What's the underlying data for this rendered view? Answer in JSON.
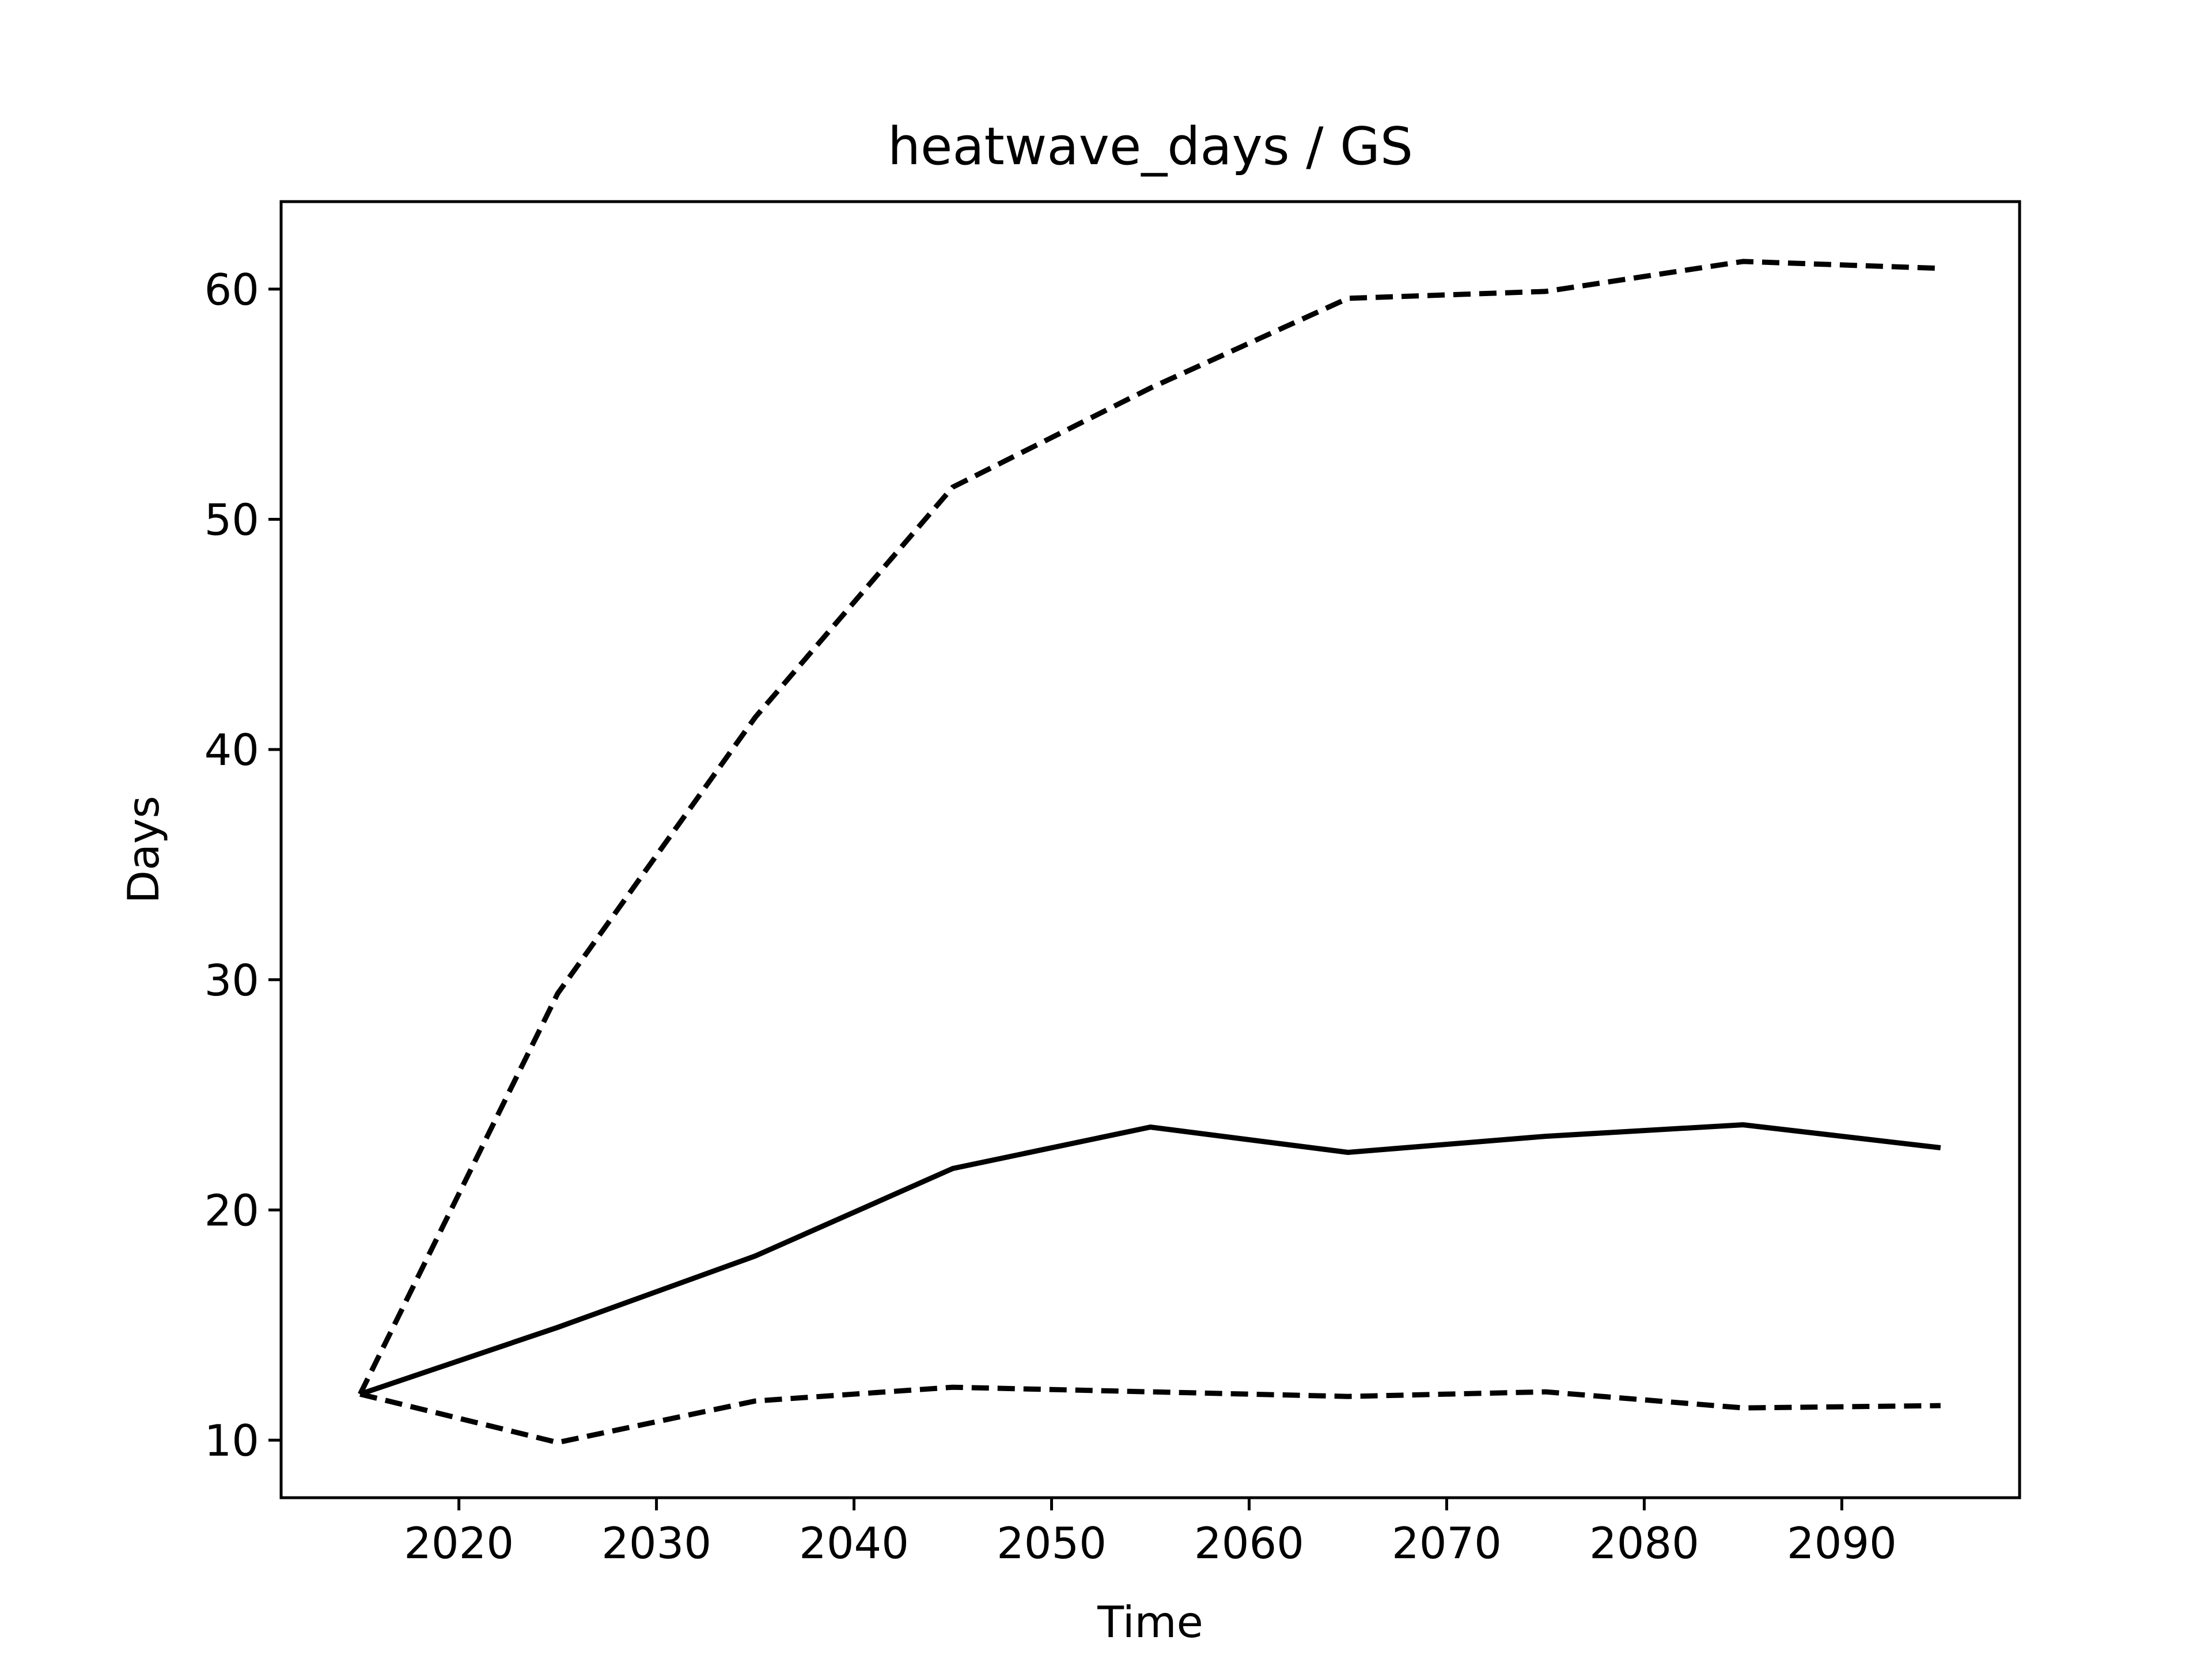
{
  "chart_data": {
    "type": "line",
    "title": "heatwave_days / GS",
    "xlabel": "Time",
    "ylabel": "Days",
    "x": [
      2015,
      2025,
      2035,
      2045,
      2055,
      2065,
      2075,
      2085,
      2095
    ],
    "xlim": [
      2011,
      2099
    ],
    "ylim": [
      7.5,
      63.8
    ],
    "xticks": [
      2020,
      2030,
      2040,
      2050,
      2060,
      2070,
      2080,
      2090
    ],
    "yticks": [
      10,
      20,
      30,
      40,
      50,
      60
    ],
    "grid": false,
    "series": [
      {
        "style": "solid",
        "color": "#000000",
        "values": [
          12.0,
          14.9,
          18.0,
          21.8,
          23.6,
          22.5,
          23.2,
          23.7,
          22.7
        ]
      },
      {
        "style": "dashed",
        "color": "#000000",
        "values": [
          12.0,
          29.4,
          41.4,
          51.4,
          55.7,
          59.6,
          59.9,
          61.2,
          60.9
        ]
      },
      {
        "style": "dashed",
        "color": "#000000",
        "values": [
          12.0,
          9.9,
          11.7,
          12.3,
          12.1,
          11.9,
          12.1,
          11.4,
          11.5
        ]
      }
    ]
  }
}
